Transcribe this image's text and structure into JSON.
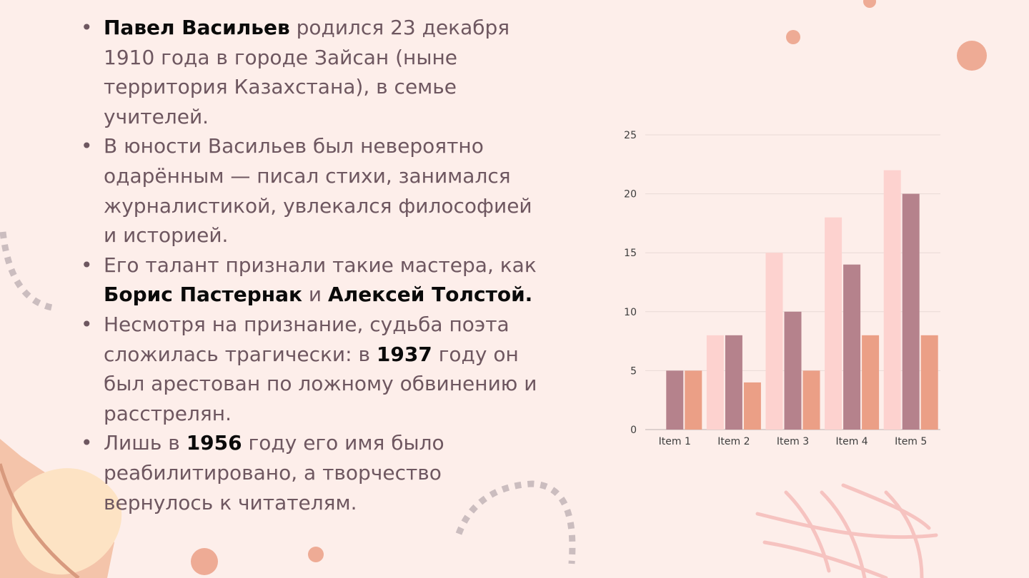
{
  "slide": {
    "bullets": [
      {
        "parts": [
          {
            "text": "Павел Васильев",
            "bold": true
          },
          {
            "text": " родился 23 декабря 1910 года в городе Зайсан (ныне территория Казахстана), в семье учителей.",
            "bold": false
          }
        ]
      },
      {
        "parts": [
          {
            "text": "В юности Васильев был невероятно одарённым — писал стихи, занимался журналистикой, увлекался философией и историей.",
            "bold": false
          }
        ]
      },
      {
        "parts": [
          {
            "text": "Его талант признали такие мастера, как ",
            "bold": false
          },
          {
            "text": "Борис Пастернак",
            "bold": true
          },
          {
            "text": " и ",
            "bold": false
          },
          {
            "text": "Алексей Толстой.",
            "bold": true
          }
        ]
      },
      {
        "parts": [
          {
            "text": "Несмотря на признание, судьба поэта сложилась трагически: в ",
            "bold": false
          },
          {
            "text": "1937",
            "bold": true
          },
          {
            "text": " году он был арестован по ложному обвинению и расстрелян.",
            "bold": false
          }
        ]
      },
      {
        "parts": [
          {
            "text": "Лишь в ",
            "bold": false
          },
          {
            "text": "1956",
            "bold": true
          },
          {
            "text": " году его имя было реабилитировано, а творчество вернулось к читателям.",
            "bold": false
          }
        ]
      }
    ]
  },
  "chart_data": {
    "type": "bar",
    "title": "",
    "xlabel": "",
    "ylabel": "",
    "categories": [
      "Item 1",
      "Item 2",
      "Item 3",
      "Item 4",
      "Item 5"
    ],
    "series": [
      {
        "values": [
          0,
          8,
          15,
          18,
          22
        ],
        "color": "#fdd2cf"
      },
      {
        "values": [
          5,
          8,
          10,
          14,
          20
        ],
        "color": "#b5828c"
      },
      {
        "values": [
          5,
          4,
          5,
          8,
          8
        ],
        "color": "#eb9f86"
      }
    ],
    "ylim": [
      0,
      25
    ],
    "yticks": [
      "0",
      "5",
      "10",
      "15",
      "20",
      "25"
    ],
    "grid": true,
    "legend": "none"
  },
  "colors": {
    "background": "#fdeeea",
    "text": "#6e5760",
    "bold_text": "#0a0a0a",
    "accent_dot": "#eb9f86"
  }
}
